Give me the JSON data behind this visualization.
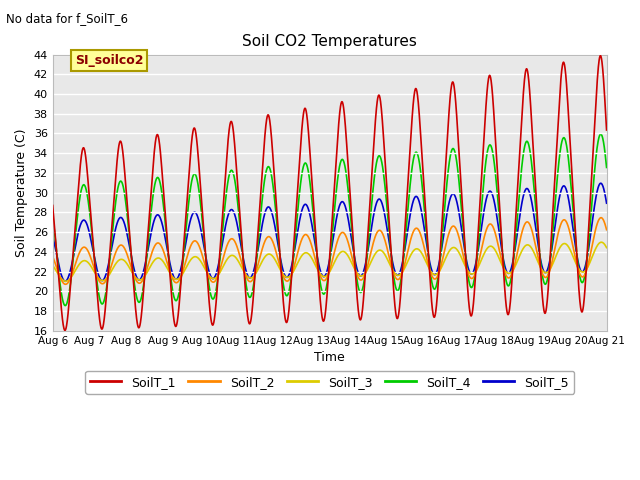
{
  "title": "Soil CO2 Temperatures",
  "top_left_text": "No data for f_SoilT_6",
  "legend_box_label": "SI_soilco2",
  "ylabel": "Soil Temperature (C)",
  "xlabel": "Time",
  "ylim": [
    16,
    44
  ],
  "yticks": [
    16,
    18,
    20,
    22,
    24,
    26,
    28,
    30,
    32,
    34,
    36,
    38,
    40,
    42,
    44
  ],
  "n_days": 15,
  "series": [
    {
      "name": "SoilT_1",
      "color": "#cc0000"
    },
    {
      "name": "SoilT_2",
      "color": "#ff8800"
    },
    {
      "name": "SoilT_3",
      "color": "#ddcc00"
    },
    {
      "name": "SoilT_4",
      "color": "#00cc00"
    },
    {
      "name": "SoilT_5",
      "color": "#0000cc"
    }
  ],
  "bg_color": "#e8e8e8",
  "grid_color": "#ffffff",
  "fig_bg": "#ffffff"
}
